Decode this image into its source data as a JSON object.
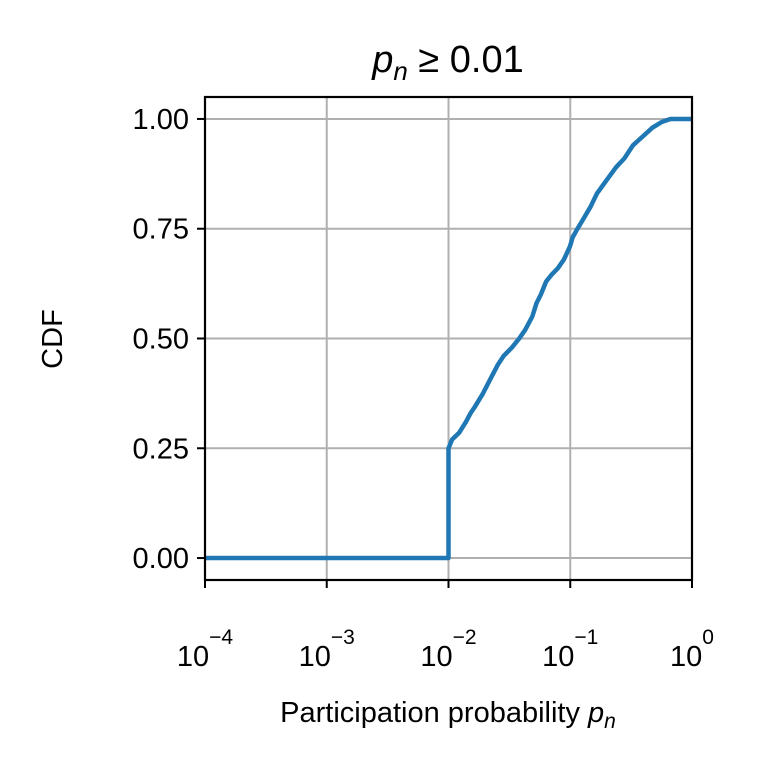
{
  "chart_data": {
    "type": "line",
    "title": {
      "var": "p",
      "sub": "n",
      "rest": " ≥ 0.01"
    },
    "xlabel": {
      "text": "Participation probability ",
      "var": "p",
      "sub": "n"
    },
    "ylabel": "CDF",
    "x_scale": "log",
    "xlim": [
      0.0001,
      1
    ],
    "ylim": [
      -0.05,
      1.05
    ],
    "grid": true,
    "x_ticks": [
      {
        "base": "10",
        "exp": "−4",
        "value": 0.0001
      },
      {
        "base": "10",
        "exp": "−3",
        "value": 0.001
      },
      {
        "base": "10",
        "exp": "−2",
        "value": 0.01
      },
      {
        "base": "10",
        "exp": "−1",
        "value": 0.1
      },
      {
        "base": "10",
        "exp": "0",
        "value": 1
      }
    ],
    "y_ticks": [
      {
        "label": "0.00",
        "value": 0.0
      },
      {
        "label": "0.25",
        "value": 0.25
      },
      {
        "label": "0.50",
        "value": 0.5
      },
      {
        "label": "0.75",
        "value": 0.75
      },
      {
        "label": "1.00",
        "value": 1.0
      }
    ],
    "series": [
      {
        "color": "#1f77b4",
        "x": [
          0.0001,
          0.01,
          0.01,
          0.0107,
          0.0122,
          0.0139,
          0.0152,
          0.0165,
          0.0192,
          0.0223,
          0.0254,
          0.0283,
          0.0333,
          0.0381,
          0.0427,
          0.0488,
          0.0527,
          0.0573,
          0.0634,
          0.0702,
          0.0792,
          0.0886,
          0.0995,
          0.1045,
          0.1146,
          0.1268,
          0.1467,
          0.1656,
          0.1983,
          0.2375,
          0.2778,
          0.3276,
          0.3934,
          0.4732,
          0.5641,
          0.6646,
          0.7656,
          1.0
        ],
        "y": [
          0.0,
          0.0,
          0.25,
          0.27,
          0.285,
          0.31,
          0.33,
          0.345,
          0.375,
          0.41,
          0.44,
          0.46,
          0.48,
          0.5,
          0.52,
          0.55,
          0.58,
          0.6,
          0.63,
          0.645,
          0.66,
          0.68,
          0.71,
          0.73,
          0.75,
          0.77,
          0.8,
          0.83,
          0.86,
          0.89,
          0.91,
          0.94,
          0.96,
          0.98,
          0.993,
          1.0,
          1.0,
          1.0
        ]
      }
    ]
  }
}
